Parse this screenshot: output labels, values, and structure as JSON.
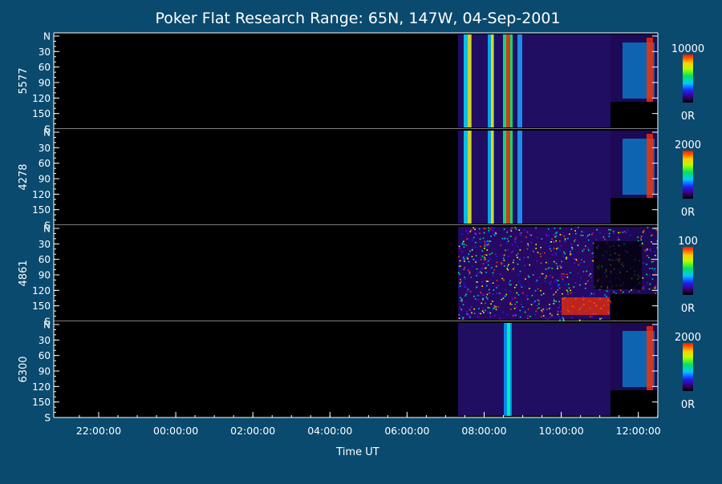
{
  "chart_data": {
    "type": "heatmap",
    "title": "Poker Flat Research Range: 65N, 147W, 04-Sep-2001",
    "xlabel": "Time UT",
    "x_ticks": [
      "22:00:00",
      "00:00:00",
      "02:00:00",
      "04:00:00",
      "06:00:00",
      "08:00:00",
      "10:00:00",
      "12:00:00"
    ],
    "y_ticks": [
      "N",
      "30",
      "60",
      "90",
      "120",
      "150",
      "S"
    ],
    "panels": [
      {
        "ylabel": "5577",
        "colorbar_max": "10000",
        "colorbar_min": "0R"
      },
      {
        "ylabel": "4278",
        "colorbar_max": "2000",
        "colorbar_min": "0R"
      },
      {
        "ylabel": "4861",
        "colorbar_max": "100",
        "colorbar_min": "0R"
      },
      {
        "ylabel": "6300",
        "colorbar_max": "2000",
        "colorbar_min": "0R"
      }
    ],
    "colors": {
      "background": "#0a4a6e",
      "plot_background": "#000000",
      "axis": "#ffffff"
    }
  }
}
